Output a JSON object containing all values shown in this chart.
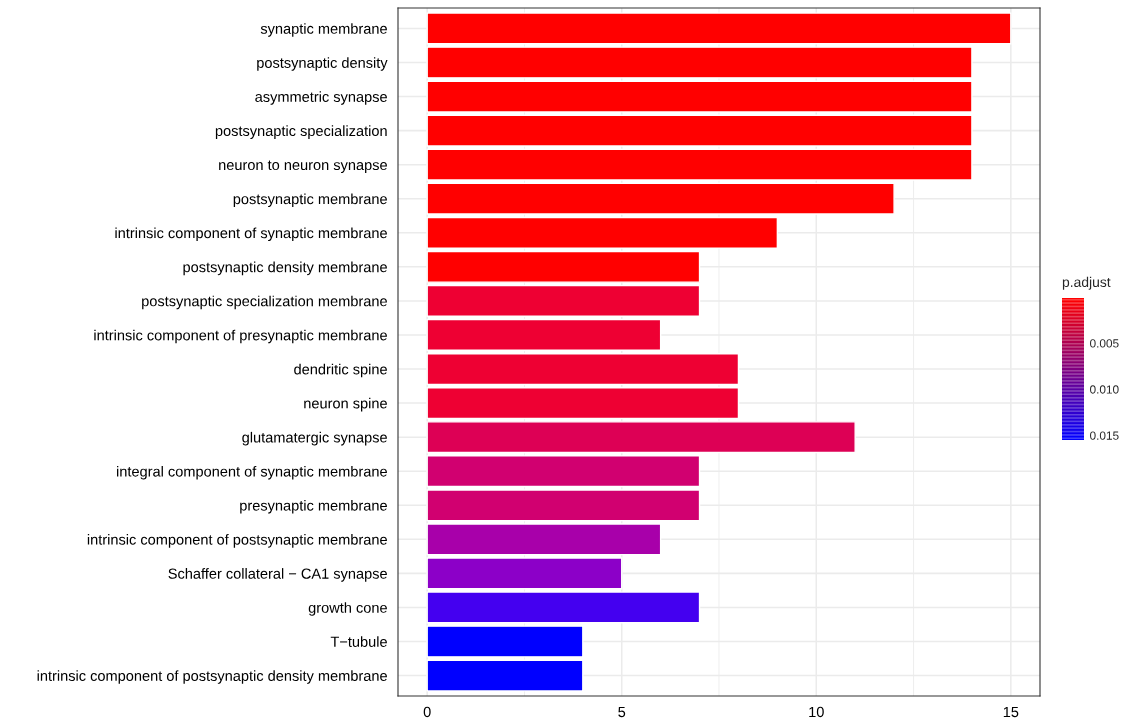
{
  "chart_data": {
    "type": "bar",
    "orientation": "horizontal",
    "categories": [
      "synaptic membrane",
      "postsynaptic density",
      "asymmetric synapse",
      "postsynaptic specialization",
      "neuron to neuron synapse",
      "postsynaptic membrane",
      "intrinsic component of synaptic membrane",
      "postsynaptic density membrane",
      "postsynaptic specialization membrane",
      "intrinsic component of presynaptic membrane",
      "dendritic spine",
      "neuron spine",
      "glutamatergic synapse",
      "integral component of synaptic membrane",
      "presynaptic membrane",
      "intrinsic component of postsynaptic membrane",
      "Schaffer collateral − CA1 synapse",
      "growth cone",
      "T−tubule",
      "intrinsic component of postsynaptic density membrane"
    ],
    "values": [
      15,
      14,
      14,
      14,
      14,
      12,
      9,
      7,
      7,
      6,
      8,
      8,
      11,
      7,
      7,
      6,
      5,
      7,
      4,
      4
    ],
    "colors": [
      "#ff0000",
      "#ff0000",
      "#ff0000",
      "#ff0000",
      "#ff0000",
      "#ff0000",
      "#ff0000",
      "#ff0000",
      "#ee0033",
      "#ee0033",
      "#ee0033",
      "#ee0033",
      "#dd0055",
      "#d10070",
      "#d10070",
      "#a800aa",
      "#8c00c8",
      "#4400f0",
      "#0000ff",
      "#0000ff"
    ],
    "xlim": [
      -0.75,
      15.75
    ],
    "xticks": [
      0,
      5,
      10,
      15
    ],
    "grid": true,
    "legend_title": "p.adjust",
    "clim": [
      0.0155,
      0.0001
    ],
    "cticks": [
      0.005,
      {
        "value": 0.01,
        "label": "0.010"
      },
      0.015
    ]
  }
}
